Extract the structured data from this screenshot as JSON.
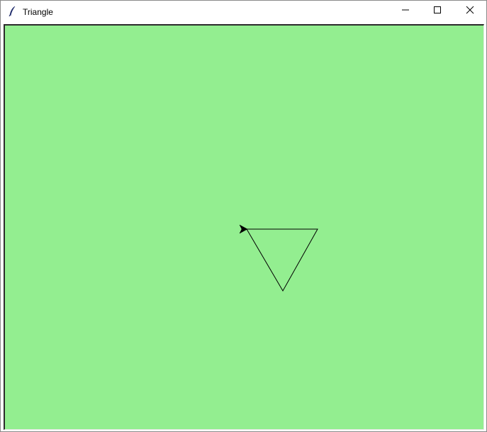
{
  "window": {
    "title": "Triangle",
    "icon": "feather-icon",
    "controls": [
      "minimize-icon",
      "maximize-icon",
      "close-icon"
    ]
  },
  "canvas": {
    "background": "#93ee90",
    "line_color": "#000000",
    "turtle_cursor": "arrow-icon"
  }
}
